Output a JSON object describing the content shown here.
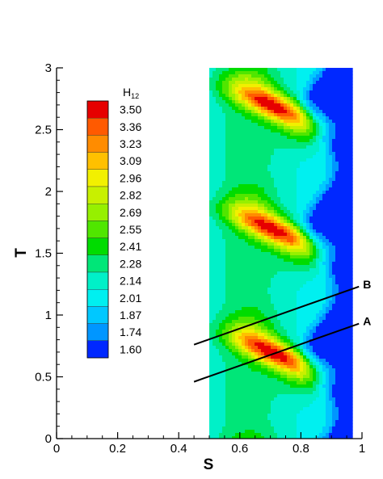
{
  "chart_data": {
    "type": "heatmap",
    "xlabel": "S",
    "ylabel": "T",
    "xlim": [
      0,
      1
    ],
    "ylim": [
      0,
      3
    ],
    "x_ticks": [
      "0",
      "0.2",
      "0.4",
      "0.6",
      "0.8",
      "1"
    ],
    "y_ticks": [
      "0",
      "0.5",
      "1",
      "1.5",
      "2",
      "2.5",
      "3"
    ],
    "x_tick_values": [
      0,
      0.2,
      0.4,
      0.6,
      0.8,
      1
    ],
    "y_tick_values": [
      0,
      0.5,
      1,
      1.5,
      2,
      2.5,
      3
    ],
    "field_domain": {
      "s_range": [
        0.5,
        0.97
      ],
      "t_range": [
        0,
        3
      ]
    },
    "field_model": {
      "description": "contour field of H12",
      "base": 2.1,
      "period_T": 1.0,
      "peak_S": 0.72,
      "peak_T_offset": 0.68,
      "peak_value": 3.5,
      "low_value": 1.6,
      "low_region_S": 0.93
    },
    "legend": {
      "title": "H",
      "title_sub": "12",
      "levels": [
        "3.50",
        "3.36",
        "3.23",
        "3.09",
        "2.96",
        "2.82",
        "2.69",
        "2.55",
        "2.41",
        "2.28",
        "2.14",
        "2.01",
        "1.87",
        "1.74",
        "1.60"
      ],
      "colors": [
        "#e60000",
        "#ff5a00",
        "#ff8c00",
        "#ffc000",
        "#f2f000",
        "#c8f000",
        "#96f000",
        "#50e600",
        "#00dc00",
        "#00e678",
        "#00f0c8",
        "#00f0f0",
        "#00c8ff",
        "#0096ff",
        "#0028ff"
      ]
    },
    "lines": [
      {
        "label": "A",
        "x": [
          0.45,
          0.99
        ],
        "y": [
          0.46,
          0.93
        ]
      },
      {
        "label": "B",
        "x": [
          0.45,
          0.99
        ],
        "y": [
          0.76,
          1.23
        ]
      }
    ]
  }
}
